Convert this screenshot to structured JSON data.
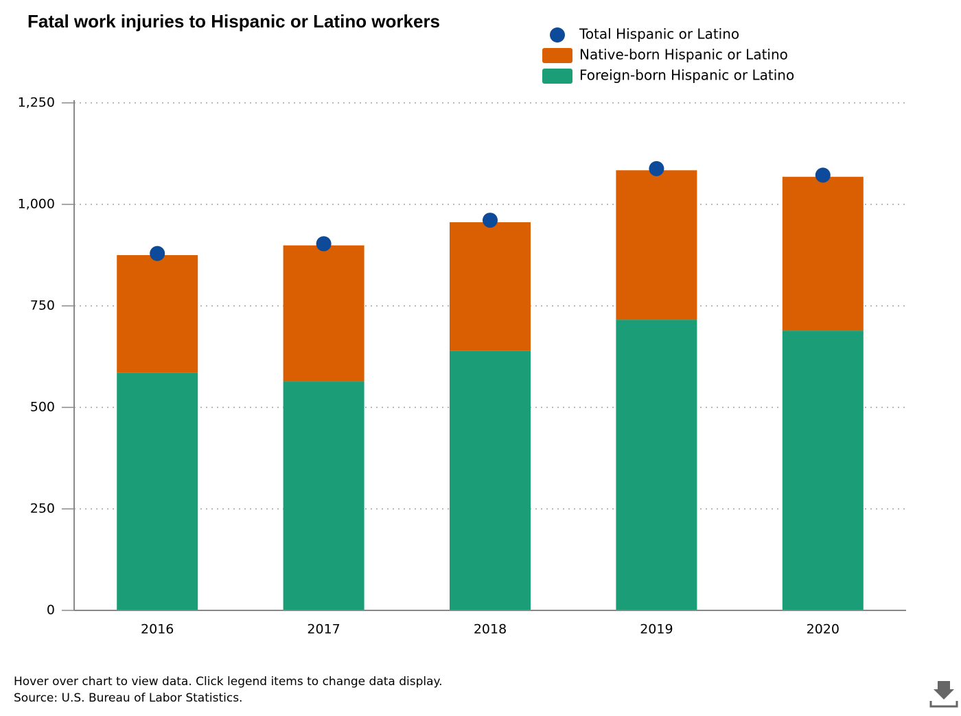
{
  "chart_data": {
    "type": "bar",
    "stacked": true,
    "title": "Fatal work injuries to Hispanic or Latino workers",
    "categories": [
      "2016",
      "2017",
      "2018",
      "2019",
      "2020"
    ],
    "series": [
      {
        "name": "Total Hispanic or Latino",
        "type": "dot",
        "color": "#0d4a9a",
        "values": [
          879,
          903,
          961,
          1088,
          1072
        ]
      },
      {
        "name": "Native-born Hispanic or Latino",
        "type": "bar",
        "color": "#d95f02",
        "values": [
          290,
          335,
          317,
          368,
          379
        ]
      },
      {
        "name": "Foreign-born Hispanic or Latino",
        "type": "bar",
        "color": "#1b9e77",
        "values": [
          585,
          564,
          639,
          716,
          689
        ]
      }
    ],
    "ylim": [
      0,
      1250
    ],
    "yticks": [
      0,
      250,
      500,
      750,
      {
        "value": 1000,
        "label": "1,000"
      },
      {
        "value": 1250,
        "label": "1,250"
      }
    ],
    "grid": true,
    "notes": [
      "Hover over chart to view data. Click legend items to change data display.",
      "Source: U.S. Bureau of Labor Statistics."
    ]
  }
}
